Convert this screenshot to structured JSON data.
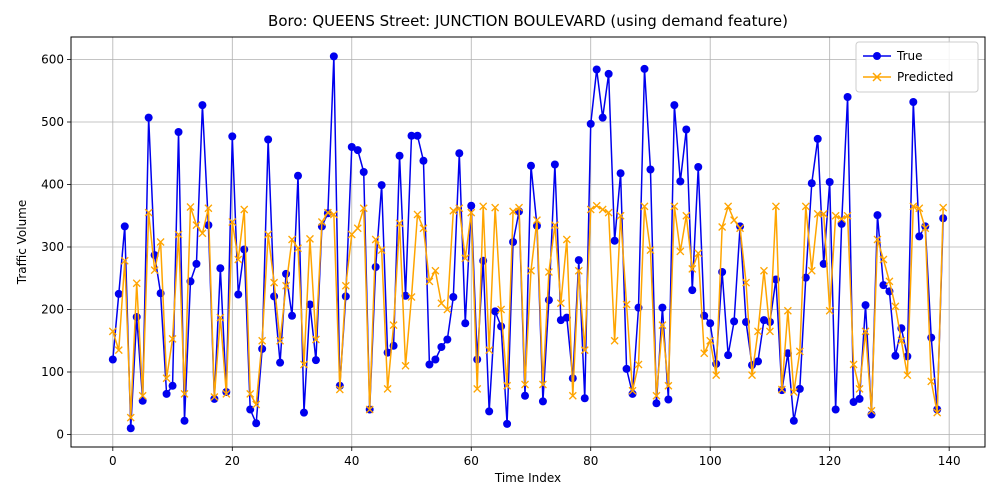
{
  "chart_data": {
    "type": "line",
    "title": "Boro: QUEENS Street: JUNCTION BOULEVARD (using demand feature)",
    "xlabel": "Time Index",
    "ylabel": "Traffic Volume",
    "xlim": [
      -7,
      146
    ],
    "ylim": [
      -20,
      636
    ],
    "xticks": [
      0,
      20,
      40,
      60,
      80,
      100,
      120,
      140
    ],
    "yticks": [
      0,
      100,
      200,
      300,
      400,
      500,
      600
    ],
    "grid": true,
    "legend_position": "top-right",
    "series": [
      {
        "name": "True",
        "color": "#0000ee",
        "marker": "circle",
        "values": [
          120,
          225,
          333,
          10,
          188,
          54,
          507,
          287,
          226,
          65,
          78,
          484,
          22,
          245,
          273,
          527,
          335,
          57,
          266,
          68,
          477,
          224,
          296,
          40,
          18,
          137,
          472,
          221,
          115,
          257,
          190,
          414,
          35,
          208,
          119,
          333,
          354,
          605,
          78,
          221,
          460,
          455,
          420,
          40,
          268,
          399,
          131,
          142,
          446,
          222,
          478,
          478,
          438,
          112,
          120,
          140,
          152,
          220,
          450,
          178,
          366,
          120,
          278,
          37,
          197,
          173,
          17,
          308,
          357,
          62,
          430,
          334,
          53,
          215,
          432,
          183,
          187,
          90,
          279,
          58,
          497,
          584,
          507,
          577,
          310,
          418,
          105,
          65,
          203,
          585,
          424,
          50,
          203,
          56,
          527,
          405,
          488,
          231,
          428,
          190,
          178,
          113,
          260,
          127,
          181,
          333,
          180,
          111,
          117,
          183,
          180,
          248,
          71,
          130,
          22,
          73,
          251,
          402,
          473,
          273,
          404,
          40,
          337,
          540,
          52,
          57,
          207,
          32,
          351,
          239,
          229,
          126,
          170,
          125,
          532,
          317,
          333,
          155,
          40,
          346
        ]
      },
      {
        "name": "Predicted",
        "color": "#ffa500",
        "marker": "x",
        "values": [
          165,
          135,
          278,
          27,
          242,
          62,
          355,
          263,
          308,
          90,
          153,
          320,
          65,
          364,
          335,
          322,
          362,
          60,
          187,
          65,
          340,
          280,
          360,
          65,
          48,
          150,
          320,
          243,
          150,
          238,
          312,
          298,
          112,
          313,
          152,
          340,
          355,
          352,
          72,
          238,
          320,
          330,
          362,
          40,
          312,
          295,
          73,
          175,
          338,
          110,
          220,
          352,
          330,
          245,
          262,
          210,
          200,
          358,
          362,
          282,
          355,
          73,
          365,
          135,
          363,
          200,
          78,
          357,
          363,
          80,
          262,
          343,
          80,
          260,
          335,
          210,
          312,
          62,
          262,
          135,
          360,
          366,
          360,
          355,
          150,
          350,
          208,
          70,
          112,
          365,
          295,
          62,
          175,
          78,
          365,
          293,
          350,
          265,
          290,
          130,
          150,
          95,
          332,
          365,
          343,
          330,
          243,
          95,
          165,
          262,
          165,
          365,
          72,
          198,
          68,
          133,
          365,
          262,
          353,
          353,
          198,
          350,
          345,
          350,
          112,
          73,
          165,
          38,
          312,
          280,
          245,
          205,
          150,
          95,
          365,
          362,
          330,
          85,
          35,
          363
        ]
      }
    ]
  }
}
